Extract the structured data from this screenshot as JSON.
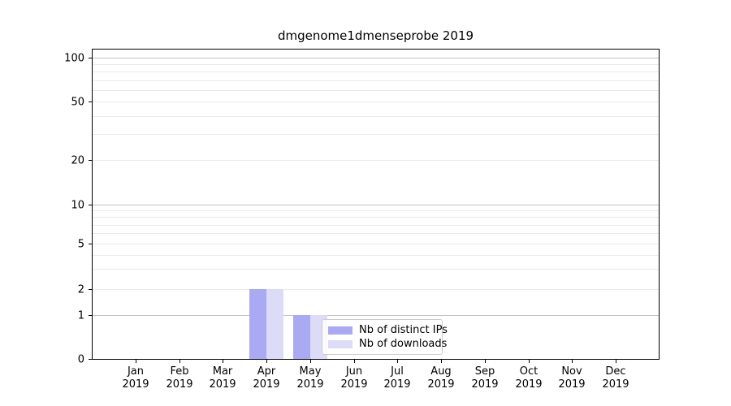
{
  "chart_data": {
    "type": "bar",
    "title": "dmgenome1dmenseprobe 2019",
    "x_tick_year": "2019",
    "categories": [
      "Jan",
      "Feb",
      "Mar",
      "Apr",
      "May",
      "Jun",
      "Jul",
      "Aug",
      "Sep",
      "Oct",
      "Nov",
      "Dec"
    ],
    "series": [
      {
        "name": "Nb of distinct IPs",
        "color": "#a9a9f4",
        "values": [
          0,
          0,
          0,
          2,
          1,
          0,
          0,
          0,
          0,
          0,
          0,
          0
        ]
      },
      {
        "name": "Nb of downloads",
        "color": "#dcdcf8",
        "values": [
          0,
          0,
          0,
          2,
          1,
          0,
          0,
          0,
          0,
          0,
          0,
          0
        ]
      }
    ],
    "y_axis": {
      "scale": "log-like",
      "tick_labels": [
        0,
        1,
        2,
        5,
        10,
        20,
        50,
        100
      ],
      "major_gridlines": [
        1,
        10,
        100
      ],
      "minor_gridlines": [
        2,
        3,
        4,
        5,
        6,
        7,
        8,
        9,
        20,
        30,
        40,
        50,
        60,
        70,
        80,
        90
      ],
      "ylim": [
        0,
        100
      ]
    },
    "xlabel": "",
    "ylabel": "",
    "grid": true,
    "legend_position": "lower-right-of-center",
    "colors": {
      "bar_distinct_ips": "#a9a9f4",
      "bar_downloads": "#dcdcf8",
      "grid_major": "#c2c2c2",
      "grid_minor": "#eaeaea",
      "spine": "#000000",
      "background": "#ffffff"
    }
  }
}
